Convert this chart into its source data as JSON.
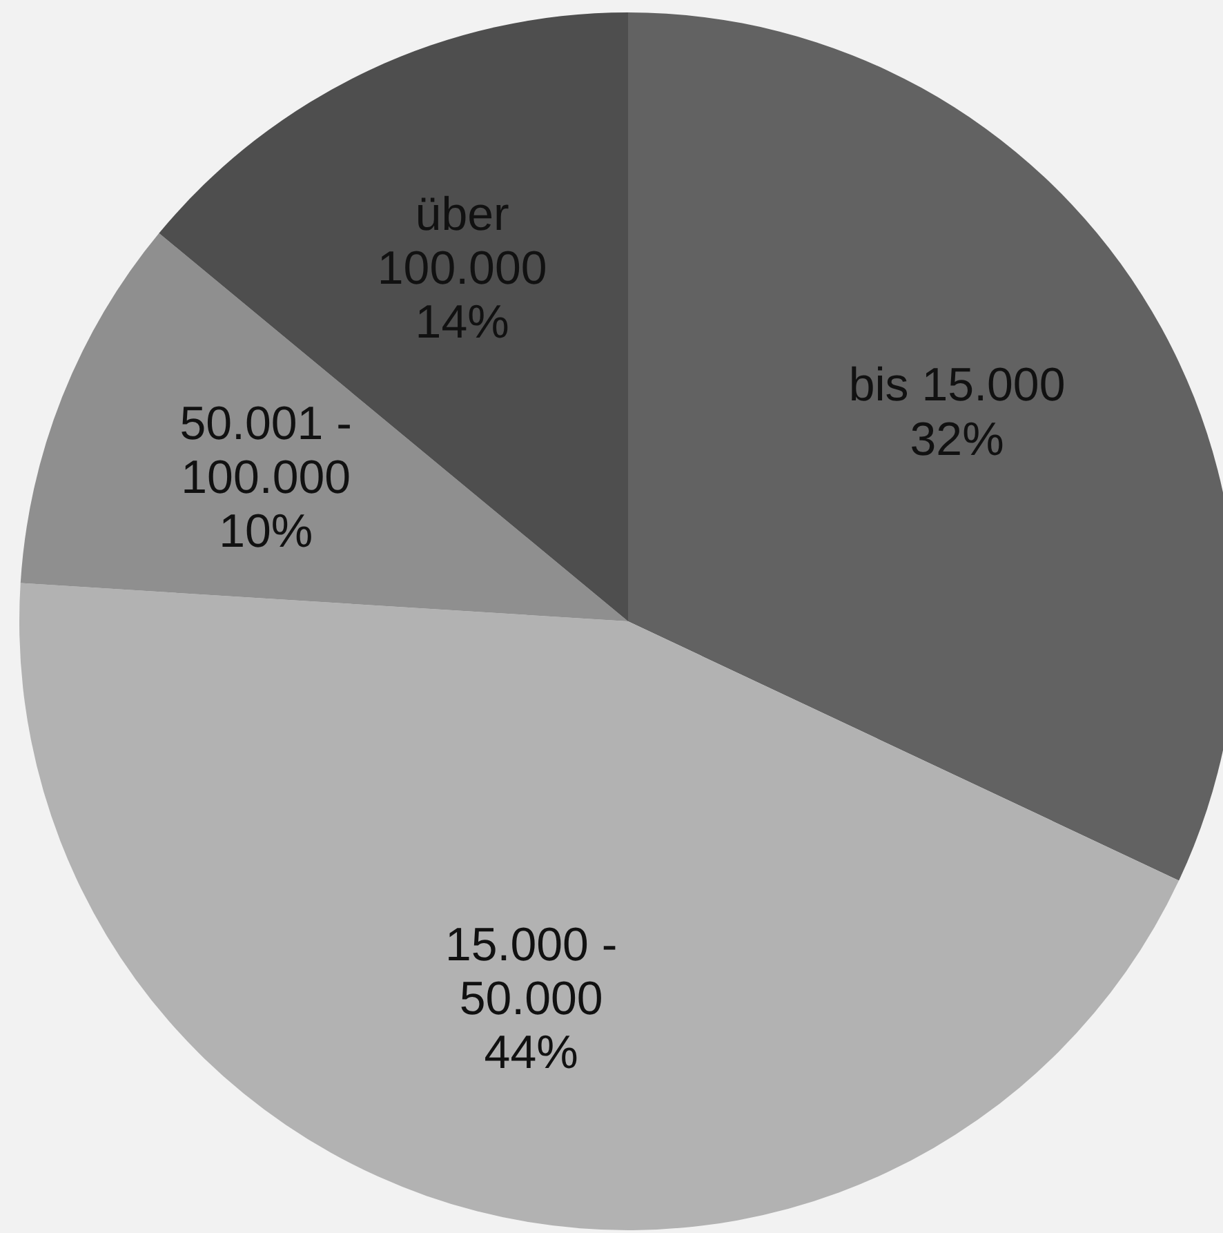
{
  "chart_data": {
    "type": "pie",
    "categories": [
      "bis 15.000",
      "15.000 -\n50.000",
      "50.001 -\n100.000",
      "über\n100.000"
    ],
    "values": [
      32,
      44,
      10,
      14
    ],
    "colors": [
      "#626262",
      "#b2b2b2",
      "#8f8f8f",
      "#4e4e4e"
    ],
    "value_labels": [
      "32%",
      "44%",
      "10%",
      "14%"
    ]
  }
}
